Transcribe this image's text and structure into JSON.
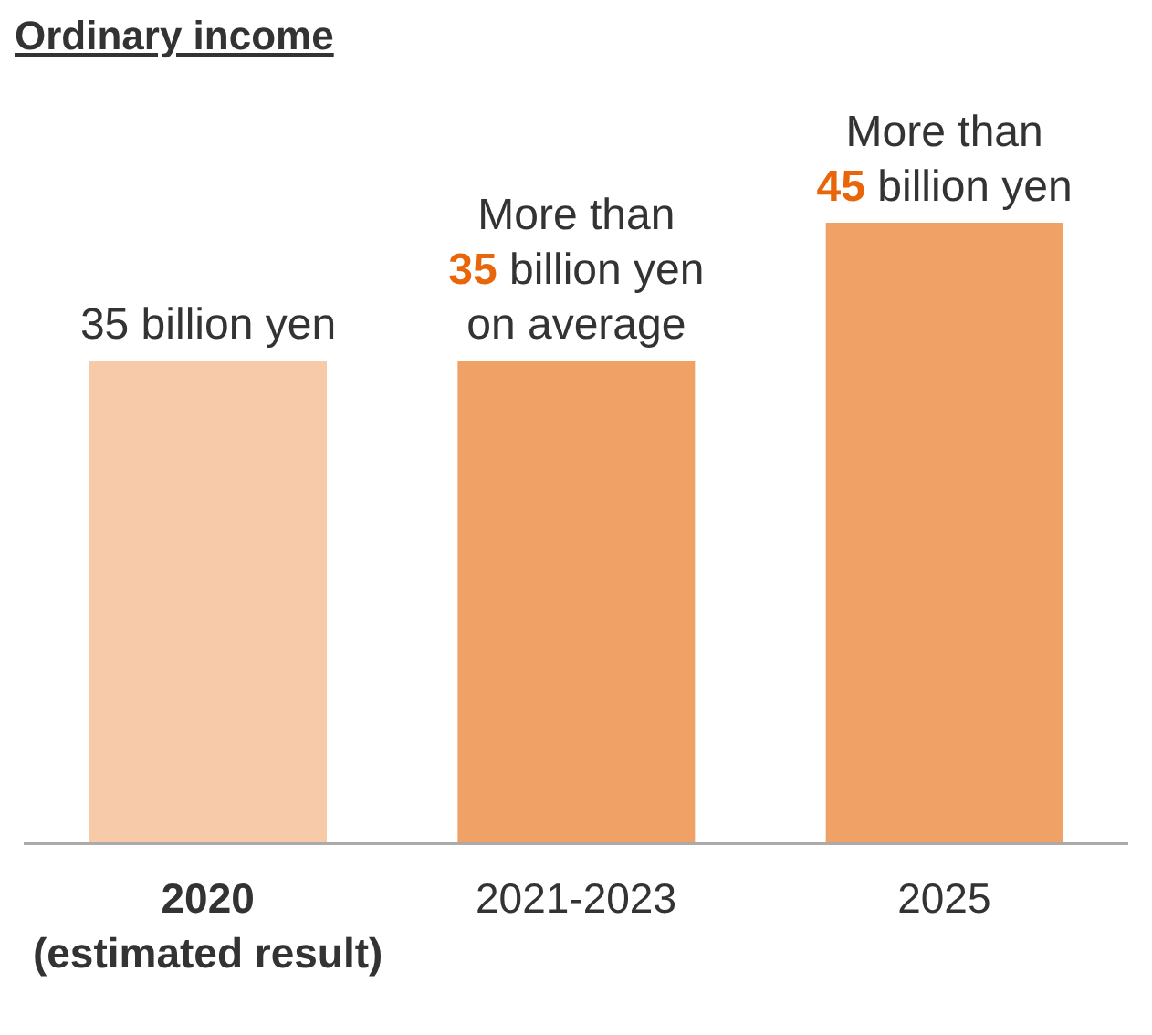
{
  "chart_data": {
    "type": "bar",
    "title": "Ordinary income",
    "categories": [
      "2020\n(estimated result)",
      "2021-2023",
      "2025"
    ],
    "values": [
      35,
      35,
      45
    ],
    "colors": [
      "#f7caa9",
      "#f0a166",
      "#f0a166"
    ],
    "value_labels": [
      "35 billion yen",
      "More than\n35 billion yen\non average",
      "More than\n45 billion yen"
    ]
  }
}
